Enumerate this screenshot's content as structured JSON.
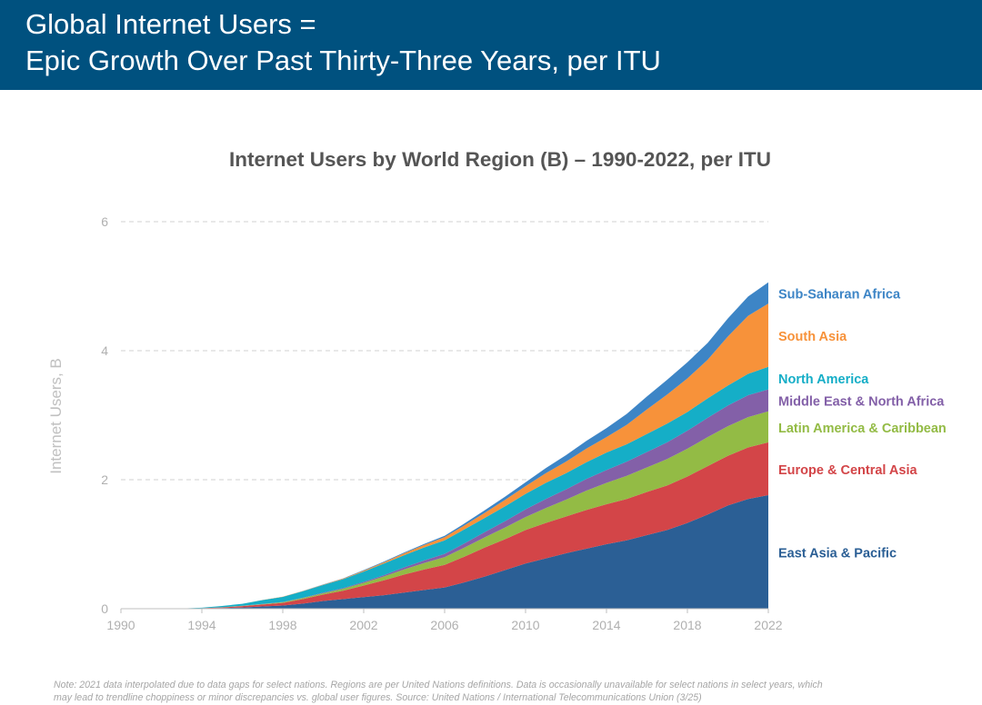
{
  "header": {
    "title_line1": "Global Internet Users =",
    "title_line2": "Epic Growth Over Past Thirty-Three Years, per ITU"
  },
  "chart_data": {
    "type": "area",
    "stacked": true,
    "title": "Internet Users by World Region (B) – 1990-2022, per ITU",
    "xlabel": "",
    "ylabel": "Internet Users, B",
    "xlim": [
      1990,
      2022
    ],
    "ylim": [
      0,
      6
    ],
    "x_ticks": [
      "1990",
      "1994",
      "1998",
      "2002",
      "2006",
      "2010",
      "2014",
      "2018",
      "2022"
    ],
    "y_ticks": [
      "0",
      "2",
      "4",
      "6"
    ],
    "grid": true,
    "legend": "right, labels at series end",
    "x": [
      1990,
      1991,
      1992,
      1993,
      1994,
      1995,
      1996,
      1997,
      1998,
      1999,
      2000,
      2001,
      2002,
      2003,
      2004,
      2005,
      2006,
      2007,
      2008,
      2009,
      2010,
      2011,
      2012,
      2013,
      2014,
      2015,
      2016,
      2017,
      2018,
      2019,
      2020,
      2021,
      2022
    ],
    "series": [
      {
        "name": "East Asia & Pacific",
        "color": "#2b5f95",
        "values": [
          0,
          0,
          0,
          0.001,
          0.005,
          0.01,
          0.02,
          0.035,
          0.05,
          0.08,
          0.12,
          0.15,
          0.18,
          0.21,
          0.25,
          0.29,
          0.33,
          0.41,
          0.5,
          0.6,
          0.7,
          0.78,
          0.86,
          0.93,
          1.0,
          1.06,
          1.14,
          1.22,
          1.33,
          1.46,
          1.6,
          1.7,
          1.76
        ]
      },
      {
        "name": "Europe & Central Asia",
        "color": "#d34548",
        "values": [
          0,
          0,
          0,
          0,
          0.003,
          0.01,
          0.02,
          0.03,
          0.04,
          0.07,
          0.1,
          0.13,
          0.18,
          0.23,
          0.28,
          0.32,
          0.35,
          0.4,
          0.45,
          0.48,
          0.52,
          0.55,
          0.57,
          0.6,
          0.62,
          0.64,
          0.67,
          0.69,
          0.72,
          0.75,
          0.77,
          0.8,
          0.82
        ]
      },
      {
        "name": "Latin America & Caribbean",
        "color": "#93bb45",
        "values": [
          0,
          0,
          0,
          0,
          0.001,
          0.002,
          0.004,
          0.006,
          0.01,
          0.015,
          0.02,
          0.03,
          0.04,
          0.06,
          0.08,
          0.1,
          0.12,
          0.14,
          0.16,
          0.18,
          0.2,
          0.23,
          0.26,
          0.3,
          0.33,
          0.36,
          0.38,
          0.41,
          0.43,
          0.45,
          0.46,
          0.47,
          0.48
        ]
      },
      {
        "name": "Middle East & North Africa",
        "color": "#8360a8",
        "values": [
          0,
          0,
          0,
          0,
          0,
          0.001,
          0.002,
          0.003,
          0.004,
          0.006,
          0.008,
          0.01,
          0.015,
          0.02,
          0.03,
          0.04,
          0.05,
          0.065,
          0.08,
          0.1,
          0.12,
          0.14,
          0.16,
          0.18,
          0.2,
          0.22,
          0.24,
          0.26,
          0.28,
          0.3,
          0.32,
          0.34,
          0.34
        ]
      },
      {
        "name": "North America",
        "color": "#15aec7",
        "values": [
          0,
          0,
          0,
          0.002,
          0.006,
          0.02,
          0.03,
          0.06,
          0.08,
          0.1,
          0.12,
          0.14,
          0.16,
          0.18,
          0.19,
          0.2,
          0.21,
          0.22,
          0.22,
          0.23,
          0.24,
          0.25,
          0.25,
          0.26,
          0.27,
          0.27,
          0.28,
          0.29,
          0.29,
          0.3,
          0.31,
          0.33,
          0.35
        ]
      },
      {
        "name": "South Asia",
        "color": "#f7923a",
        "values": [
          0,
          0,
          0,
          0,
          0,
          0,
          0,
          0.001,
          0.002,
          0.003,
          0.005,
          0.008,
          0.015,
          0.02,
          0.03,
          0.04,
          0.05,
          0.06,
          0.08,
          0.1,
          0.12,
          0.15,
          0.18,
          0.21,
          0.24,
          0.3,
          0.38,
          0.45,
          0.52,
          0.6,
          0.76,
          0.9,
          0.98
        ]
      },
      {
        "name": "Sub-Saharan Africa",
        "color": "#3d85c6",
        "values": [
          0,
          0,
          0,
          0,
          0,
          0,
          0,
          0.001,
          0.001,
          0.002,
          0.003,
          0.004,
          0.008,
          0.01,
          0.012,
          0.015,
          0.02,
          0.03,
          0.04,
          0.05,
          0.06,
          0.08,
          0.1,
          0.12,
          0.14,
          0.17,
          0.2,
          0.23,
          0.25,
          0.26,
          0.28,
          0.3,
          0.33
        ]
      }
    ]
  },
  "footnote": {
    "line1": "Note: 2021 data interpolated due to data gaps for select nations. Regions are per United Nations definitions. Data is occasionally unavailable for select nations in select years, which",
    "line2": "may lead to trendline choppiness or minor discrepancies vs. global user figures. Source: United Nations / International Telecommunications Union (3/25)"
  }
}
